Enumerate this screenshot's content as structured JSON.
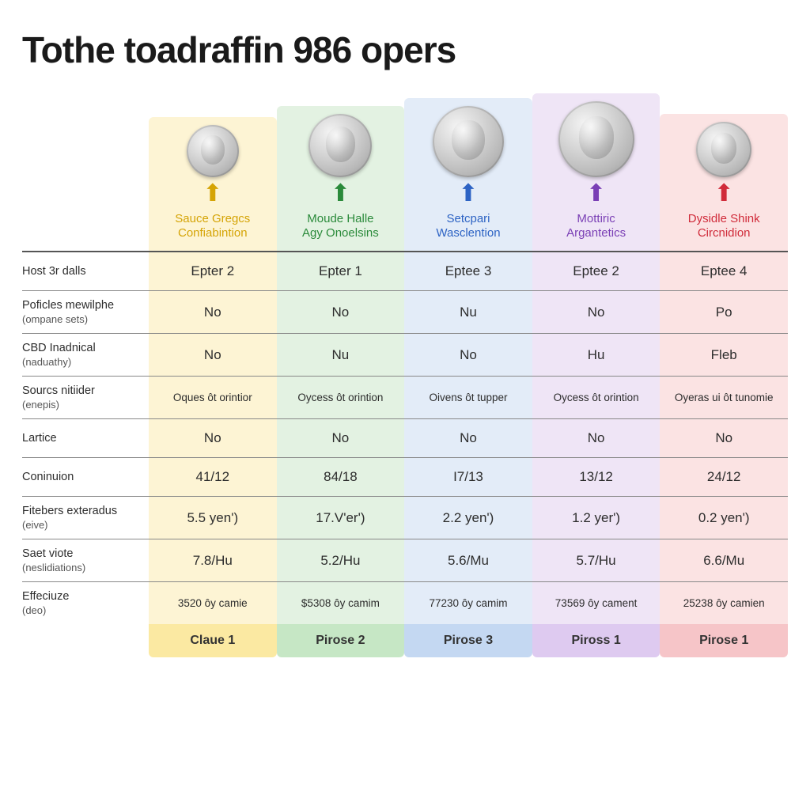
{
  "title": "Tothe toadraffin 986 opers",
  "columns": [
    {
      "title_line1": "Sauce Gregcs",
      "title_line2": "Confiabintion",
      "text_color": "#d5a406",
      "arrow_color": "#d5a406",
      "tint": "#fdf4d4",
      "footer_bg": "#fbe9a2",
      "footer_label": "Claue 1",
      "coin_size": 66
    },
    {
      "title_line1": "Moude Halle",
      "title_line2": "Agy Onoelsins",
      "text_color": "#2a8a3a",
      "arrow_color": "#2a8a3a",
      "tint": "#e3f2e2",
      "footer_bg": "#c6e7c5",
      "footer_label": "Pirose 2",
      "coin_size": 80
    },
    {
      "title_line1": "Setcpari",
      "title_line2": "Wasclention",
      "text_color": "#2d63c4",
      "arrow_color": "#2d63c4",
      "tint": "#e3ecf8",
      "footer_bg": "#c4d8f2",
      "footer_label": "Pirose 3",
      "coin_size": 90
    },
    {
      "title_line1": "Mottiric",
      "title_line2": "Argantetics",
      "text_color": "#7a3fb5",
      "arrow_color": "#7a3fb5",
      "tint": "#efe5f6",
      "footer_bg": "#decaf0",
      "footer_label": "Piross 1",
      "coin_size": 96
    },
    {
      "title_line1": "Dysidle Shink",
      "title_line2": "Circnidion",
      "text_color": "#d02b3a",
      "arrow_color": "#d02b3a",
      "tint": "#fbe3e3",
      "footer_bg": "#f6c5c8",
      "footer_label": "Pirose 1",
      "coin_size": 70
    }
  ],
  "rows": [
    {
      "label": "Host 3r dalls",
      "sub": "",
      "cells": [
        "Epter 2",
        "Epter 1",
        "Eptee 3",
        "Eptee 2",
        "Eptee 4"
      ],
      "small": false
    },
    {
      "label": "Poficles mewilphe",
      "sub": "(ompane sets)",
      "cells": [
        "No",
        "No",
        "Nu",
        "No",
        "Po"
      ],
      "small": false
    },
    {
      "label": "CBD Inadnical",
      "sub": "(naduathy)",
      "cells": [
        "No",
        "Nu",
        "No",
        "Hu",
        "Fleb"
      ],
      "small": false
    },
    {
      "label": "Sourcs nitiider",
      "sub": "(enepis)",
      "cells": [
        "Oques ôt orintior",
        "Oycess ôt orintion",
        "Oivens ôt tupper",
        "Oycess ôt orintion",
        "Oyeras ui ôt tunomie"
      ],
      "small": true
    },
    {
      "label": "Lartice",
      "sub": "",
      "cells": [
        "No",
        "No",
        "No",
        "No",
        "No"
      ],
      "small": false
    },
    {
      "label": "Coninuion",
      "sub": "",
      "cells": [
        "41/12",
        "84/18",
        "I7/13",
        "13/12",
        "24/12"
      ],
      "small": false
    },
    {
      "label": "Fitebers exteradus",
      "sub": "(eive)",
      "cells": [
        "5.5 yen')",
        "17.V'er')",
        "2.2 yen')",
        "1.2 yer')",
        "0.2 yen')"
      ],
      "small": false
    },
    {
      "label": "Saet viote",
      "sub": "(neslidiations)",
      "cells": [
        "7.8/Hu",
        "5.2/Hu",
        "5.6/Mu",
        "5.7/Hu",
        "6.6/Mu"
      ],
      "small": false
    },
    {
      "label": "Effeciuze",
      "sub": "(deo)",
      "cells": [
        "3520 ôy camie",
        "$5308 ôy camim",
        "77230 ôy camim",
        "73569 ôy cament",
        "25238 ôy camien"
      ],
      "small": true
    }
  ]
}
